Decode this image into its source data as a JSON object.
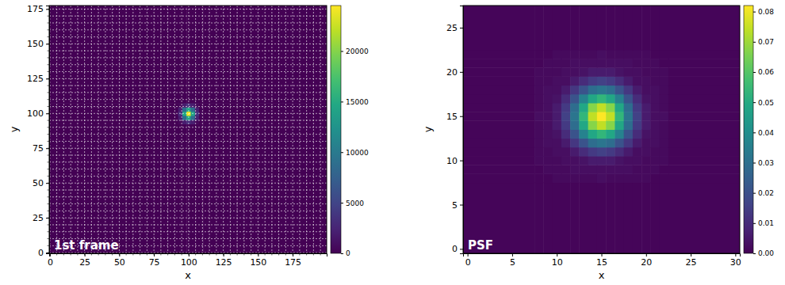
{
  "chart_data": [
    {
      "type": "heatmap",
      "title": "1st frame",
      "xlabel": "x",
      "ylabel": "y",
      "xlim": [
        -0.5,
        199.5
      ],
      "ylim": [
        -0.5,
        177.5
      ],
      "xticks": [
        0,
        25,
        50,
        75,
        100,
        125,
        150,
        175
      ],
      "yticks": [
        0,
        25,
        50,
        75,
        100,
        125,
        150,
        175
      ],
      "grid": true,
      "x_gridlines": [
        0,
        5,
        10,
        15,
        20,
        25,
        30,
        35,
        40,
        45,
        50,
        55,
        60,
        65,
        70,
        75,
        80,
        85,
        90,
        95,
        100,
        105,
        110,
        115,
        120,
        125,
        130,
        135,
        140,
        145,
        150,
        155,
        160,
        165,
        170,
        175,
        180,
        185,
        190,
        195
      ],
      "y_gridlines": [
        0,
        5,
        10,
        15,
        20,
        25,
        30,
        35,
        40,
        45,
        50,
        55,
        60,
        65,
        70,
        75,
        80,
        85,
        90,
        95,
        100,
        105,
        110,
        115,
        120,
        125,
        130,
        135,
        140,
        145,
        150,
        155,
        160,
        165,
        170,
        175
      ],
      "x_edges": [
        -0.5,
        89.5,
        92.5,
        95.5,
        98.5,
        101.5,
        104.5,
        107.5,
        110.5,
        199.5
      ],
      "y_edges": [
        -0.5,
        89.5,
        92.5,
        95.5,
        98.5,
        101.5,
        104.5,
        107.5,
        110.5,
        177.5
      ],
      "cells": [
        [
          0,
          0,
          0,
          0,
          0,
          0,
          0,
          0,
          0
        ],
        [
          0,
          0,
          40,
          160,
          270,
          160,
          40,
          0,
          0
        ],
        [
          0,
          40,
          440,
          2000,
          3200,
          2000,
          440,
          40,
          0
        ],
        [
          0,
          160,
          2000,
          8800,
          14500,
          8800,
          2000,
          160,
          0
        ],
        [
          0,
          270,
          3200,
          14500,
          24000,
          14500,
          3200,
          270,
          0
        ],
        [
          0,
          160,
          2000,
          8800,
          14500,
          8800,
          2000,
          160,
          0
        ],
        [
          0,
          40,
          440,
          2000,
          3200,
          2000,
          440,
          40,
          0
        ],
        [
          0,
          0,
          40,
          160,
          270,
          160,
          40,
          0,
          0
        ],
        [
          0,
          0,
          0,
          0,
          0,
          0,
          0,
          0,
          0
        ]
      ],
      "colorbar": {
        "range": [
          0,
          24500
        ],
        "ticks": [
          0,
          5000,
          10000,
          15000,
          20000
        ]
      }
    },
    {
      "type": "heatmap",
      "title": "PSF",
      "xlabel": "x",
      "ylabel": "y",
      "xlim": [
        -0.5,
        30.5
      ],
      "ylim": [
        -0.5,
        27.5
      ],
      "xticks": [
        0,
        5,
        10,
        15,
        20,
        25,
        30
      ],
      "yticks": [
        0,
        5,
        10,
        15,
        20,
        25
      ],
      "grid": false,
      "x_edges": [
        -0.5,
        7.5,
        8.5,
        9.5,
        10.5,
        11.5,
        12.5,
        13.5,
        14.5,
        15.5,
        16.5,
        17.5,
        18.5,
        19.5,
        20.5,
        21.5,
        22.5,
        30.5
      ],
      "y_edges": [
        -0.5,
        7.5,
        8.5,
        9.5,
        10.5,
        11.5,
        12.5,
        13.5,
        14.5,
        15.5,
        16.5,
        17.5,
        18.5,
        19.5,
        20.5,
        21.5,
        22.5,
        27.5
      ],
      "cells": [
        [
          0.001,
          0.001,
          0.001,
          0.001,
          0.001,
          0.001,
          0.001,
          0.001,
          0.001,
          0.001,
          0.001,
          0.001,
          0.001,
          0.001,
          0.001,
          0.001,
          0.001
        ],
        [
          0.001,
          0.001,
          0.001,
          0.002,
          0.002,
          0.002,
          0.002,
          0.002,
          0.003,
          0.002,
          0.002,
          0.002,
          0.002,
          0.002,
          0.001,
          0.001,
          0.001
        ],
        [
          0.001,
          0.001,
          0.002,
          0.002,
          0.002,
          0.003,
          0.003,
          0.003,
          0.003,
          0.003,
          0.003,
          0.003,
          0.002,
          0.002,
          0.002,
          0.001,
          0.001
        ],
        [
          0.001,
          0.002,
          0.002,
          0.002,
          0.003,
          0.003,
          0.004,
          0.006,
          0.006,
          0.006,
          0.004,
          0.003,
          0.003,
          0.002,
          0.002,
          0.002,
          0.001
        ],
        [
          0.001,
          0.002,
          0.002,
          0.003,
          0.003,
          0.006,
          0.01,
          0.014,
          0.016,
          0.014,
          0.01,
          0.006,
          0.003,
          0.003,
          0.002,
          0.002,
          0.001
        ],
        [
          0.001,
          0.002,
          0.003,
          0.003,
          0.006,
          0.013,
          0.021,
          0.029,
          0.032,
          0.029,
          0.021,
          0.013,
          0.006,
          0.003,
          0.003,
          0.002,
          0.001
        ],
        [
          0.001,
          0.002,
          0.003,
          0.004,
          0.01,
          0.021,
          0.036,
          0.049,
          0.054,
          0.049,
          0.036,
          0.021,
          0.01,
          0.004,
          0.003,
          0.002,
          0.001
        ],
        [
          0.001,
          0.002,
          0.003,
          0.006,
          0.014,
          0.029,
          0.049,
          0.067,
          0.074,
          0.067,
          0.049,
          0.029,
          0.014,
          0.006,
          0.003,
          0.002,
          0.001
        ],
        [
          0.001,
          0.003,
          0.003,
          0.006,
          0.016,
          0.032,
          0.054,
          0.074,
          0.082,
          0.074,
          0.054,
          0.032,
          0.016,
          0.006,
          0.003,
          0.003,
          0.001
        ],
        [
          0.001,
          0.002,
          0.003,
          0.006,
          0.014,
          0.029,
          0.049,
          0.067,
          0.074,
          0.067,
          0.049,
          0.029,
          0.014,
          0.006,
          0.003,
          0.002,
          0.001
        ],
        [
          0.001,
          0.002,
          0.003,
          0.004,
          0.01,
          0.021,
          0.036,
          0.049,
          0.054,
          0.049,
          0.036,
          0.021,
          0.01,
          0.004,
          0.003,
          0.002,
          0.001
        ],
        [
          0.001,
          0.002,
          0.003,
          0.003,
          0.006,
          0.013,
          0.021,
          0.029,
          0.032,
          0.029,
          0.021,
          0.013,
          0.006,
          0.003,
          0.003,
          0.002,
          0.001
        ],
        [
          0.001,
          0.002,
          0.002,
          0.003,
          0.003,
          0.006,
          0.01,
          0.014,
          0.016,
          0.014,
          0.01,
          0.006,
          0.003,
          0.003,
          0.002,
          0.002,
          0.001
        ],
        [
          0.001,
          0.002,
          0.002,
          0.002,
          0.003,
          0.003,
          0.004,
          0.006,
          0.006,
          0.006,
          0.004,
          0.003,
          0.003,
          0.002,
          0.002,
          0.002,
          0.001
        ],
        [
          0.001,
          0.001,
          0.002,
          0.002,
          0.002,
          0.003,
          0.003,
          0.003,
          0.003,
          0.003,
          0.003,
          0.003,
          0.002,
          0.002,
          0.002,
          0.001,
          0.001
        ],
        [
          0.001,
          0.001,
          0.001,
          0.002,
          0.002,
          0.002,
          0.002,
          0.002,
          0.003,
          0.002,
          0.002,
          0.002,
          0.002,
          0.002,
          0.001,
          0.001,
          0.001
        ],
        [
          0.001,
          0.001,
          0.001,
          0.001,
          0.001,
          0.001,
          0.001,
          0.001,
          0.001,
          0.001,
          0.001,
          0.001,
          0.001,
          0.001,
          0.001,
          0.001,
          0.001
        ]
      ],
      "colorbar": {
        "range": [
          0,
          0.082
        ],
        "ticks": [
          {
            "value": 0,
            "label": "0.00"
          },
          0.01,
          0.02,
          0.03,
          0.04,
          0.05,
          0.06,
          0.07,
          0.08
        ]
      }
    }
  ]
}
